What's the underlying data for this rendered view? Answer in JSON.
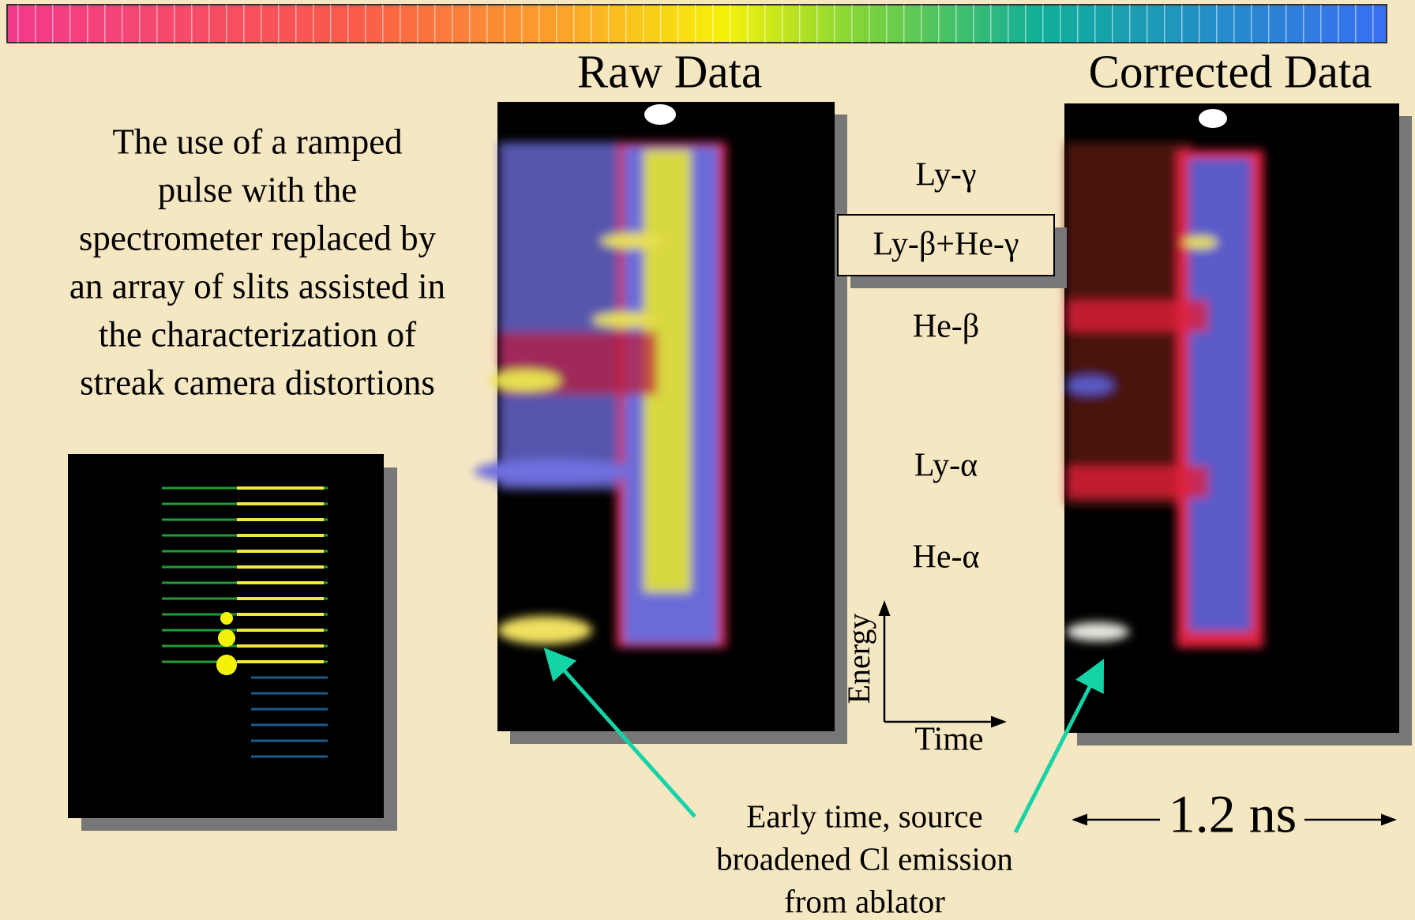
{
  "raw_title": "Raw Data",
  "corrected_title": "Corrected Data",
  "description": [
    "The use of  a ramped",
    "pulse with the",
    "spectrometer replaced by",
    "an array of slits assisted in",
    "the characterization of",
    "streak camera distortions"
  ],
  "lines": [
    "Ly-γ",
    "Ly-β+He-γ",
    "He-β",
    "Ly-α",
    "He-α"
  ],
  "axis": {
    "energy": "Energy",
    "time": "Time"
  },
  "annotation": [
    "Early time, source",
    "broadened Cl emission",
    "from ablator"
  ],
  "scale": "1.2 ns"
}
